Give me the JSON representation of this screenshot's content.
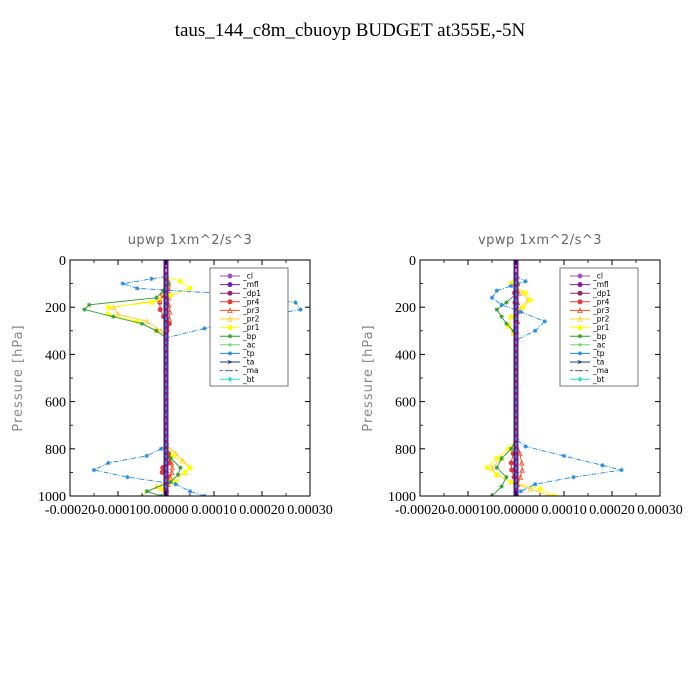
{
  "page": {
    "title": "taus_144_c8m_cbuoyp  BUDGET at355E,-5N"
  },
  "chart_data": [
    {
      "type": "line",
      "title": "upwp   1xm^2/s^3",
      "xlabel": "",
      "ylabel": "Pressure [hPa]",
      "xlim": [
        -0.0002,
        0.0003
      ],
      "ylim": [
        1000,
        0
      ],
      "xticks": [
        -0.0002,
        -0.0001,
        0.0,
        0.0001,
        0.0002,
        0.0003
      ],
      "xtick_labels": [
        "-0.00020",
        "-0.00010",
        "0.00000",
        "0.00010",
        "0.00020",
        "0.00030"
      ],
      "yticks": [
        0,
        200,
        400,
        600,
        800,
        1000
      ],
      "ytick_labels": [
        "0",
        "200",
        "400",
        "600",
        "800",
        "1000"
      ],
      "legend_position": "top-right",
      "series": [
        {
          "name": "_cl",
          "color": "#9b59b6",
          "marker": "circle",
          "pressure": [
            70,
            200,
            340,
            500,
            780,
            900,
            1000
          ],
          "values": [
            0,
            0,
            0,
            0,
            0,
            0,
            0
          ]
        },
        {
          "name": "_mfl",
          "color": "#7b1fa2",
          "marker": "circle",
          "pressure": [
            70,
            200,
            340,
            500,
            780,
            900,
            1000
          ],
          "values": [
            0,
            0,
            0,
            0,
            0,
            0,
            0
          ]
        },
        {
          "name": "_dp1",
          "color": "#8e2a6a",
          "marker": "circle",
          "pressure": [
            70,
            200,
            340,
            500,
            780,
            900,
            1000
          ],
          "values": [
            0,
            0,
            0,
            0,
            0,
            0,
            0
          ]
        },
        {
          "name": "_pr4",
          "color": "#e53935",
          "marker": "circle",
          "pressure": [
            70,
            90,
            120,
            150,
            180,
            210,
            240,
            270,
            300,
            330,
            780,
            820,
            860,
            880,
            900,
            920,
            950,
            980,
            1000
          ],
          "values": [
            0,
            3e-06,
            4e-06,
            -7e-06,
            -1.3e-05,
            -1.2e-05,
            -5e-06,
            7e-06,
            2e-06,
            0,
            0,
            5e-06,
            8e-06,
            -7e-06,
            -8e-06,
            5e-06,
            2e-06,
            1e-06,
            1e-06
          ]
        },
        {
          "name": "_pr3",
          "color": "#f4511e",
          "marker": "tri",
          "pressure": [
            70,
            100,
            130,
            160,
            190,
            220,
            250,
            280,
            330,
            780,
            820,
            860,
            880,
            900,
            920,
            950,
            1000
          ],
          "values": [
            0,
            5e-06,
            4e-06,
            5e-06,
            6e-06,
            8e-06,
            7e-06,
            2e-06,
            0,
            0,
            6e-06,
            1.1e-05,
            1.3e-05,
            1.2e-05,
            9e-06,
            4e-06,
            2e-06
          ]
        },
        {
          "name": "_pr2",
          "color": "#ffcc33",
          "marker": "tri",
          "pressure": [
            70,
            90,
            110,
            140,
            170,
            200,
            230,
            260,
            300,
            330,
            780,
            820,
            850,
            880,
            900,
            930,
            960,
            1000
          ],
          "values": [
            0,
            5e-06,
            3e-06,
            -5e-06,
            -1.5e-05,
            -0.00011,
            -0.0001,
            -4e-05,
            -1e-05,
            0,
            0,
            2e-05,
            3.5e-05,
            5e-05,
            4e-05,
            1e-05,
            -2e-05,
            -5e-05
          ]
        },
        {
          "name": "_pr1",
          "color": "#ffff00",
          "marker": "circle",
          "pressure": [
            70,
            90,
            120,
            150,
            180,
            200,
            230,
            260,
            300,
            330,
            780,
            830,
            880,
            900,
            940,
            970,
            1000
          ],
          "values": [
            0,
            3e-05,
            5e-05,
            1e-05,
            -3e-05,
            -0.00012,
            -0.00012,
            -6e-05,
            -2e-05,
            0,
            0,
            1.5e-05,
            5e-05,
            4e-05,
            2e-05,
            -1e-05,
            0
          ]
        },
        {
          "name": "_bp",
          "color": "#2e9e2e",
          "marker": "star",
          "pressure": [
            70,
            100,
            130,
            160,
            190,
            210,
            240,
            270,
            300,
            330,
            800,
            840,
            880,
            910,
            940,
            980,
            1000
          ],
          "values": [
            0,
            5e-06,
            -6e-06,
            -2e-05,
            -0.00016,
            -0.00017,
            -0.00011,
            -5e-05,
            -2e-05,
            0,
            0,
            1e-05,
            3e-05,
            2.5e-05,
            1e-05,
            -4e-05,
            -1e-05
          ]
        },
        {
          "name": "_ac",
          "color": "#66dd66",
          "marker": "dot",
          "pressure": [
            70,
            200,
            340,
            780,
            900,
            1000
          ],
          "values": [
            0,
            0,
            0,
            0,
            0,
            0
          ]
        },
        {
          "name": "_tp",
          "color": "#1e88e5",
          "marker": "star",
          "pressure": [
            70,
            80,
            100,
            120,
            150,
            180,
            210,
            250,
            290,
            330,
            780,
            800,
            830,
            860,
            890,
            920,
            950,
            980,
            1000
          ],
          "values": [
            0,
            -3e-05,
            -9e-05,
            -6e-05,
            0.00018,
            0.00027,
            0.00028,
            0.00017,
            8e-05,
            0,
            0,
            -1e-05,
            -4e-05,
            -0.00012,
            -0.00015,
            -8e-05,
            2e-05,
            5e-05,
            8e-05
          ]
        },
        {
          "name": "_ta",
          "color": "#1a3a8f",
          "marker": "arrow",
          "pressure": [
            70,
            200,
            340,
            780,
            900,
            1000
          ],
          "values": [
            0,
            0,
            0,
            0,
            0,
            0
          ]
        },
        {
          "name": "_ma",
          "color": "#666666",
          "marker": "dash",
          "pressure": [
            70,
            200,
            340,
            780,
            900,
            1000
          ],
          "values": [
            0,
            0,
            0,
            0,
            0,
            0
          ]
        },
        {
          "name": "_bt",
          "color": "#22dddd",
          "marker": "diamond",
          "pressure": [
            70,
            200,
            340,
            780,
            900,
            1000
          ],
          "values": [
            0,
            0,
            0,
            0,
            0,
            0
          ]
        }
      ]
    },
    {
      "type": "line",
      "title": "vpwp   1xm^2/s^3",
      "xlabel": "",
      "ylabel": "Pressure [hPa]",
      "xlim": [
        -0.0002,
        0.0003
      ],
      "ylim": [
        1000,
        0
      ],
      "xticks": [
        -0.0002,
        -0.0001,
        0.0,
        0.0001,
        0.0002,
        0.0003
      ],
      "xtick_labels": [
        "-0.00020",
        "-0.00010",
        "0.00000",
        "0.00010",
        "0.00020",
        "0.00030"
      ],
      "yticks": [
        0,
        200,
        400,
        600,
        800,
        1000
      ],
      "ytick_labels": [
        "0",
        "200",
        "400",
        "600",
        "800",
        "1000"
      ],
      "legend_position": "top-right",
      "series": [
        {
          "name": "_cl",
          "color": "#9b59b6",
          "marker": "circle",
          "pressure": [
            70,
            200,
            340,
            500,
            760,
            900,
            1000
          ],
          "values": [
            0,
            0,
            0,
            0,
            0,
            0,
            0
          ]
        },
        {
          "name": "_mfl",
          "color": "#7b1fa2",
          "marker": "circle",
          "pressure": [
            70,
            200,
            340,
            500,
            760,
            900,
            1000
          ],
          "values": [
            0,
            0,
            0,
            0,
            0,
            0,
            0
          ]
        },
        {
          "name": "_dp1",
          "color": "#8e2a6a",
          "marker": "circle",
          "pressure": [
            70,
            200,
            340,
            500,
            760,
            900,
            1000
          ],
          "values": [
            0,
            0,
            0,
            0,
            0,
            0,
            0
          ]
        },
        {
          "name": "_pr4",
          "color": "#e53935",
          "marker": "circle",
          "pressure": [
            70,
            100,
            140,
            180,
            220,
            260,
            300,
            340,
            760,
            820,
            860,
            890,
            920,
            950,
            1000
          ],
          "values": [
            0,
            2e-06,
            -3e-06,
            -2e-06,
            2e-06,
            1e-06,
            0,
            0,
            0,
            -6e-06,
            -1e-05,
            -9e-06,
            -4e-06,
            2e-06,
            1e-06
          ]
        },
        {
          "name": "_pr3",
          "color": "#f4511e",
          "marker": "tri",
          "pressure": [
            70,
            100,
            140,
            180,
            220,
            260,
            300,
            340,
            760,
            820,
            860,
            890,
            920,
            950,
            1000
          ],
          "values": [
            0,
            3e-06,
            5e-06,
            3e-06,
            2e-06,
            3e-06,
            1e-06,
            0,
            0,
            8e-06,
            1.2e-05,
            1.3e-05,
            9e-06,
            4e-06,
            2e-06
          ]
        },
        {
          "name": "_pr2",
          "color": "#ffcc33",
          "marker": "tri",
          "pressure": [
            70,
            100,
            140,
            170,
            200,
            240,
            280,
            310,
            340,
            760,
            800,
            840,
            880,
            910,
            940,
            970,
            1000
          ],
          "values": [
            0,
            -1e-05,
            1.5e-05,
            2.5e-05,
            1.2e-05,
            -1e-05,
            -1.5e-05,
            -5e-06,
            0,
            0,
            -1e-05,
            -3e-05,
            -5e-05,
            -4e-05,
            -1e-05,
            3e-05,
            7e-05
          ]
        },
        {
          "name": "_pr1",
          "color": "#ffff00",
          "marker": "circle",
          "pressure": [
            70,
            100,
            140,
            170,
            200,
            240,
            280,
            310,
            340,
            760,
            800,
            840,
            880,
            910,
            940,
            970,
            1000
          ],
          "values": [
            0,
            -1e-05,
            2e-05,
            3e-05,
            1.5e-05,
            -1e-05,
            -1.5e-05,
            -5e-06,
            0,
            0,
            -1.5e-05,
            -4e-05,
            -6e-05,
            -4e-05,
            -1e-05,
            5e-05,
            8e-05
          ]
        },
        {
          "name": "_bp",
          "color": "#2e9e2e",
          "marker": "star",
          "pressure": [
            70,
            100,
            140,
            180,
            210,
            240,
            270,
            300,
            340,
            760,
            800,
            840,
            880,
            920,
            960,
            1000
          ],
          "values": [
            0,
            4e-06,
            2e-06,
            -2e-05,
            -4e-05,
            -3e-05,
            -2e-05,
            -5e-06,
            0,
            0,
            -1e-05,
            -3e-05,
            -4e-05,
            -2e-05,
            -3e-05,
            -5e-05
          ]
        },
        {
          "name": "_ac",
          "color": "#66dd66",
          "marker": "dot",
          "pressure": [
            70,
            200,
            340,
            760,
            900,
            1000
          ],
          "values": [
            0,
            0,
            0,
            0,
            0,
            0
          ]
        },
        {
          "name": "_tp",
          "color": "#1e88e5",
          "marker": "star",
          "pressure": [
            70,
            90,
            110,
            130,
            160,
            190,
            220,
            260,
            300,
            340,
            760,
            790,
            830,
            870,
            890,
            920,
            950,
            980,
            1000
          ],
          "values": [
            0,
            2e-05,
            -1e-05,
            -4e-05,
            -5e-05,
            -3e-05,
            1e-05,
            6e-05,
            4e-05,
            0,
            0,
            2e-05,
            0.0001,
            0.00018,
            0.00022,
            0.00012,
            4e-05,
            1e-05,
            0
          ]
        },
        {
          "name": "_ta",
          "color": "#1a3a8f",
          "marker": "arrow",
          "pressure": [
            70,
            200,
            340,
            760,
            900,
            1000
          ],
          "values": [
            0,
            0,
            0,
            0,
            0,
            0
          ]
        },
        {
          "name": "_ma",
          "color": "#666666",
          "marker": "dash",
          "pressure": [
            70,
            200,
            340,
            760,
            900,
            1000
          ],
          "values": [
            0,
            0,
            0,
            0,
            0,
            0
          ]
        },
        {
          "name": "_bt",
          "color": "#22dddd",
          "marker": "diamond",
          "pressure": [
            70,
            200,
            340,
            760,
            900,
            1000
          ],
          "values": [
            0,
            0,
            0,
            0,
            0,
            0
          ]
        }
      ]
    }
  ]
}
